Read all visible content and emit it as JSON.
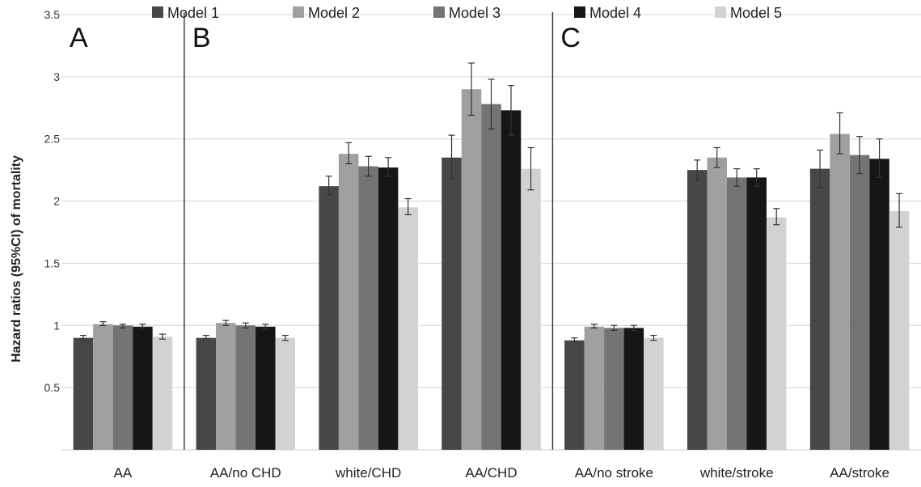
{
  "chart_data": {
    "type": "bar",
    "title": "",
    "xlabel": "",
    "ylabel": "Hazard ratios (95%CI) of mortality",
    "ylim": [
      0,
      3.5
    ],
    "yticks": [
      "0.5",
      "1",
      "1.5",
      "2",
      "2.5",
      "3",
      "3.5"
    ],
    "grid": true,
    "legend_position": "top",
    "categories": [
      "AA",
      "AA/no CHD",
      "white/CHD",
      "AA/CHD",
      "AA/no stroke",
      "white/stroke",
      "AA/stroke"
    ],
    "panels": [
      {
        "label": "A",
        "categories": [
          "AA"
        ]
      },
      {
        "label": "B",
        "categories": [
          "AA/no CHD",
          "white/CHD",
          "AA/CHD"
        ]
      },
      {
        "label": "C",
        "categories": [
          "AA/no stroke",
          "white/stroke",
          "AA/stroke"
        ]
      }
    ],
    "series": [
      {
        "name": "Model 1",
        "color": "#474747",
        "values": [
          0.9,
          0.9,
          2.12,
          2.35,
          0.88,
          2.25,
          2.26
        ],
        "ci_low": [
          0.89,
          0.89,
          2.05,
          2.18,
          0.87,
          2.17,
          2.11
        ],
        "ci_high": [
          0.92,
          0.92,
          2.2,
          2.53,
          0.9,
          2.33,
          2.41
        ]
      },
      {
        "name": "Model 2",
        "color": "#a0a0a0",
        "values": [
          1.01,
          1.02,
          2.38,
          2.9,
          0.99,
          2.35,
          2.54
        ],
        "ci_low": [
          1.0,
          1.0,
          2.3,
          2.69,
          0.98,
          2.27,
          2.38
        ],
        "ci_high": [
          1.03,
          1.04,
          2.47,
          3.11,
          1.01,
          2.43,
          2.71
        ]
      },
      {
        "name": "Model 3",
        "color": "#747474",
        "values": [
          1.0,
          1.0,
          2.28,
          2.78,
          0.98,
          2.19,
          2.37
        ],
        "ci_low": [
          0.98,
          0.98,
          2.2,
          2.58,
          0.96,
          2.12,
          2.22
        ],
        "ci_high": [
          1.01,
          1.02,
          2.36,
          2.98,
          1.0,
          2.26,
          2.52
        ]
      },
      {
        "name": "Model 4",
        "color": "#161616",
        "values": [
          0.99,
          0.99,
          2.27,
          2.73,
          0.98,
          2.19,
          2.34
        ],
        "ci_low": [
          0.98,
          0.97,
          2.2,
          2.53,
          0.96,
          2.12,
          2.19
        ],
        "ci_high": [
          1.01,
          1.01,
          2.35,
          2.93,
          1.0,
          2.26,
          2.5
        ]
      },
      {
        "name": "Model 5",
        "color": "#d2d2d2",
        "values": [
          0.91,
          0.9,
          1.95,
          2.26,
          0.9,
          1.87,
          1.92
        ],
        "ci_low": [
          0.89,
          0.88,
          1.89,
          2.09,
          0.88,
          1.81,
          1.79
        ],
        "ci_high": [
          0.93,
          0.92,
          2.02,
          2.43,
          0.92,
          1.94,
          2.06
        ]
      }
    ]
  }
}
